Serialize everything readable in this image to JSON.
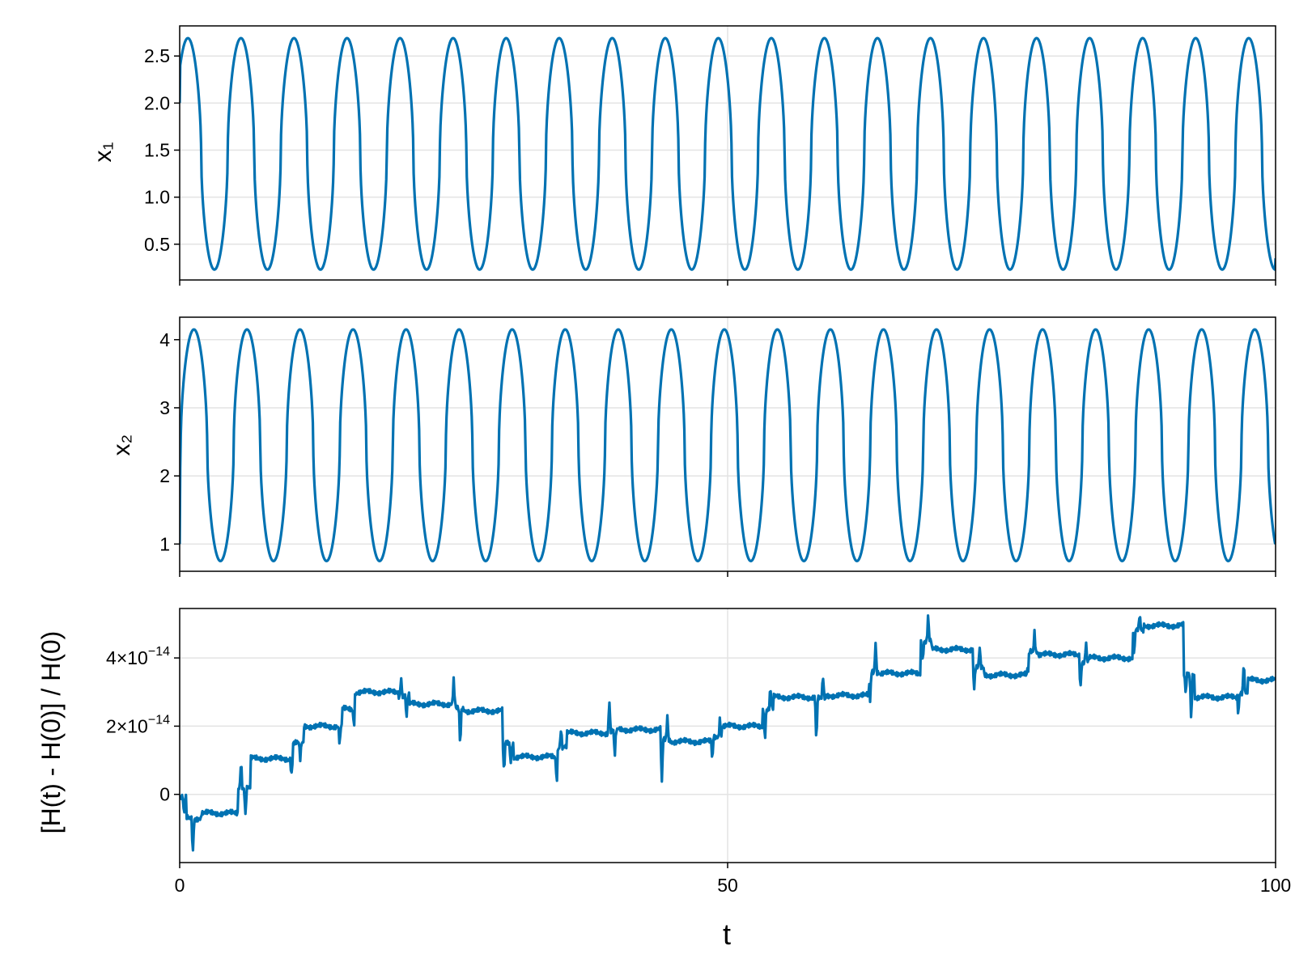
{
  "chart_data": [
    {
      "type": "line",
      "id": "x1",
      "ylabel": "x₁",
      "xlabel": "",
      "xlim": [
        0,
        100
      ],
      "ylim": [
        0.12,
        2.82
      ],
      "xticks": [
        0,
        50,
        100
      ],
      "yticks": [
        0.5,
        1.0,
        1.5,
        2.0,
        2.5
      ],
      "ytick_labels": [
        "0.5",
        "1.0",
        "1.5",
        "2.0",
        "2.5"
      ],
      "grid": true,
      "series_color": "#0072B2",
      "oscillation": {
        "period": 4.84,
        "min": 0.23,
        "max": 2.69,
        "first_peak_t": 0.75,
        "start_value": 2.0,
        "end_value": 0.35
      },
      "series": [
        {
          "x": [
            0,
            0.75,
            3.1,
            5.6,
            7.9,
            10.4,
            12.8,
            15.3,
            17.6,
            20.1,
            22.5,
            25.0,
            27.3,
            29.8,
            32.2,
            34.7,
            37.0,
            39.5,
            41.9,
            44.4,
            46.7,
            49.2,
            51.6,
            54.1,
            56.4,
            58.9,
            61.3,
            63.8,
            66.1,
            68.6,
            71.0,
            73.5,
            75.8,
            78.3,
            80.7,
            83.2,
            85.5,
            88.0,
            90.4,
            92.9,
            95.2,
            97.7,
            100
          ],
          "y": [
            2.0,
            2.69,
            0.23,
            2.69,
            0.23,
            2.69,
            0.23,
            2.69,
            0.23,
            2.69,
            0.23,
            2.69,
            0.23,
            2.69,
            0.23,
            2.69,
            0.23,
            2.69,
            0.23,
            2.69,
            0.23,
            2.69,
            0.23,
            2.69,
            0.23,
            2.69,
            0.23,
            2.69,
            0.23,
            2.69,
            0.23,
            2.69,
            0.23,
            2.69,
            0.23,
            2.69,
            0.23,
            2.69,
            0.23,
            2.69,
            0.23,
            2.69,
            0.35
          ]
        }
      ]
    },
    {
      "type": "line",
      "id": "x2",
      "ylabel": "x₂",
      "xlabel": "",
      "xlim": [
        0,
        100
      ],
      "ylim": [
        0.6,
        4.33
      ],
      "xticks": [
        0,
        50,
        100
      ],
      "yticks": [
        1,
        2,
        3,
        4
      ],
      "ytick_labels": [
        "1",
        "2",
        "3",
        "4"
      ],
      "grid": true,
      "series_color": "#0072B2",
      "oscillation": {
        "period": 4.84,
        "min": 0.75,
        "max": 4.15,
        "first_peak_t": 1.3,
        "start_value": 1.0,
        "end_value": 1.1
      },
      "series": [
        {
          "x": [
            0,
            1.3,
            3.6,
            6.1,
            8.5,
            10.9,
            13.3,
            15.8,
            18.2,
            20.6,
            23.0,
            25.5,
            27.9,
            30.3,
            32.7,
            35.2,
            37.6,
            40.0,
            42.4,
            44.9,
            47.3,
            49.7,
            52.1,
            54.6,
            57.0,
            59.4,
            61.8,
            64.3,
            66.7,
            69.1,
            71.5,
            74.0,
            76.4,
            78.8,
            81.2,
            83.7,
            86.1,
            88.5,
            90.9,
            93.4,
            95.8,
            98.2,
            100
          ],
          "y": [
            1.0,
            4.15,
            0.75,
            4.15,
            0.75,
            4.15,
            0.75,
            4.15,
            0.75,
            4.15,
            0.75,
            4.15,
            0.75,
            4.15,
            0.75,
            4.15,
            0.75,
            4.15,
            0.75,
            4.15,
            0.75,
            4.15,
            0.75,
            4.15,
            0.75,
            4.15,
            0.75,
            4.15,
            0.75,
            4.15,
            0.75,
            4.15,
            0.75,
            4.15,
            0.75,
            4.15,
            0.75,
            4.15,
            0.75,
            4.15,
            0.75,
            4.15,
            1.1
          ]
        }
      ]
    },
    {
      "type": "line",
      "id": "energy",
      "ylabel": "[H(t) - H(0)] / H(0)",
      "xlabel": "t",
      "xlim": [
        0,
        100
      ],
      "ylim": [
        -2e-14,
        5.45e-14
      ],
      "xticks": [
        0,
        50,
        100
      ],
      "xtick_labels": [
        "0",
        "50",
        "100"
      ],
      "yticks": [
        0,
        2e-14,
        4e-14
      ],
      "ytick_labels": [
        {
          "mantissa": "",
          "exponent": "",
          "plain": "0"
        },
        {
          "mantissa": "2×10",
          "exponent": "−14",
          "plain": ""
        },
        {
          "mantissa": "4×10",
          "exponent": "−14",
          "plain": ""
        }
      ],
      "grid": true,
      "series_color": "#0072B2",
      "levels": [
        {
          "t0": 0.0,
          "t1": 0.6,
          "level": -0.1
        },
        {
          "t0": 0.6,
          "t1": 2.0,
          "level": -0.7
        },
        {
          "t0": 2.0,
          "t1": 5.3,
          "level": -0.55
        },
        {
          "t0": 5.3,
          "t1": 6.5,
          "level": 0.2
        },
        {
          "t0": 6.5,
          "t1": 10.3,
          "level": 1.05
        },
        {
          "t0": 10.3,
          "t1": 11.3,
          "level": 1.5
        },
        {
          "t0": 11.3,
          "t1": 14.8,
          "level": 2.0
        },
        {
          "t0": 14.8,
          "t1": 16.0,
          "level": 2.5
        },
        {
          "t0": 16.0,
          "t1": 20.0,
          "level": 3.0
        },
        {
          "t0": 20.0,
          "t1": 21.0,
          "level": 2.9
        },
        {
          "t0": 21.0,
          "t1": 25.2,
          "level": 2.65
        },
        {
          "t0": 25.2,
          "t1": 26.0,
          "level": 2.5
        },
        {
          "t0": 26.0,
          "t1": 29.5,
          "level": 2.45
        },
        {
          "t0": 29.5,
          "t1": 30.5,
          "level": 1.5
        },
        {
          "t0": 30.5,
          "t1": 34.5,
          "level": 1.1
        },
        {
          "t0": 34.5,
          "t1": 35.3,
          "level": 1.4
        },
        {
          "t0": 35.3,
          "t1": 39.2,
          "level": 1.8
        },
        {
          "t0": 39.2,
          "t1": 40.0,
          "level": 1.85
        },
        {
          "t0": 40.0,
          "t1": 43.9,
          "level": 1.9
        },
        {
          "t0": 43.9,
          "t1": 44.8,
          "level": 1.6
        },
        {
          "t0": 44.8,
          "t1": 48.5,
          "level": 1.55
        },
        {
          "t0": 48.5,
          "t1": 49.5,
          "level": 1.7
        },
        {
          "t0": 49.5,
          "t1": 53.2,
          "level": 2.0
        },
        {
          "t0": 53.2,
          "t1": 54.2,
          "level": 2.5
        },
        {
          "t0": 54.2,
          "t1": 58.0,
          "level": 2.85
        },
        {
          "t0": 58.0,
          "t1": 59.0,
          "level": 2.8
        },
        {
          "t0": 59.0,
          "t1": 62.9,
          "level": 2.9
        },
        {
          "t0": 62.9,
          "t1": 63.8,
          "level": 3.6
        },
        {
          "t0": 63.8,
          "t1": 67.6,
          "level": 3.55
        },
        {
          "t0": 67.6,
          "t1": 68.6,
          "level": 4.5
        },
        {
          "t0": 68.6,
          "t1": 72.4,
          "level": 4.25
        },
        {
          "t0": 72.4,
          "t1": 73.4,
          "level": 3.7
        },
        {
          "t0": 73.4,
          "t1": 77.3,
          "level": 3.5
        },
        {
          "t0": 77.3,
          "t1": 78.3,
          "level": 4.2
        },
        {
          "t0": 78.3,
          "t1": 82.1,
          "level": 4.1
        },
        {
          "t0": 82.1,
          "t1": 83.0,
          "level": 3.9
        },
        {
          "t0": 83.0,
          "t1": 87.0,
          "level": 4.0
        },
        {
          "t0": 87.0,
          "t1": 88.0,
          "level": 4.8
        },
        {
          "t0": 88.0,
          "t1": 91.6,
          "level": 4.95
        },
        {
          "t0": 91.6,
          "t1": 92.6,
          "level": 3.5
        },
        {
          "t0": 92.6,
          "t1": 96.5,
          "level": 2.85
        },
        {
          "t0": 96.5,
          "t1": 97.5,
          "level": 3.0
        },
        {
          "t0": 97.5,
          "t1": 100.0,
          "level": 3.35
        }
      ],
      "level_units": "1e-14",
      "spikes": [
        {
          "t": 0.4,
          "dy": -0.6
        },
        {
          "t": 1.2,
          "dy": -1.1
        },
        {
          "t": 5.6,
          "dy": 0.9
        },
        {
          "t": 6.0,
          "dy": -0.8
        },
        {
          "t": 10.2,
          "dy": -0.5
        },
        {
          "t": 11.0,
          "dy": -0.5
        },
        {
          "t": 14.6,
          "dy": -0.6
        },
        {
          "t": 15.9,
          "dy": -0.5
        },
        {
          "t": 20.2,
          "dy": 0.6
        },
        {
          "t": 20.7,
          "dy": -0.7
        },
        {
          "t": 25.0,
          "dy": 0.7
        },
        {
          "t": 25.6,
          "dy": -1.2
        },
        {
          "t": 29.6,
          "dy": -1.0
        },
        {
          "t": 30.2,
          "dy": -0.6
        },
        {
          "t": 34.4,
          "dy": -0.8
        },
        {
          "t": 34.8,
          "dy": 0.6
        },
        {
          "t": 39.2,
          "dy": 1.0
        },
        {
          "t": 39.7,
          "dy": -0.8
        },
        {
          "t": 44.0,
          "dy": -1.3
        },
        {
          "t": 44.5,
          "dy": 0.7
        },
        {
          "t": 48.6,
          "dy": -0.8
        },
        {
          "t": 49.3,
          "dy": 0.6
        },
        {
          "t": 53.4,
          "dy": -1.0
        },
        {
          "t": 53.9,
          "dy": 0.7
        },
        {
          "t": 58.1,
          "dy": -1.4
        },
        {
          "t": 58.7,
          "dy": 0.7
        },
        {
          "t": 63.0,
          "dy": -0.9
        },
        {
          "t": 63.5,
          "dy": 0.9
        },
        {
          "t": 67.8,
          "dy": -0.6
        },
        {
          "t": 68.3,
          "dy": 0.8
        },
        {
          "t": 72.5,
          "dy": -0.6
        },
        {
          "t": 73.0,
          "dy": 0.6
        },
        {
          "t": 77.4,
          "dy": -0.8
        },
        {
          "t": 78.0,
          "dy": 0.6
        },
        {
          "t": 82.2,
          "dy": -0.8
        },
        {
          "t": 82.7,
          "dy": 0.6
        },
        {
          "t": 87.1,
          "dy": -0.8
        },
        {
          "t": 87.6,
          "dy": 0.5
        },
        {
          "t": 91.8,
          "dy": -0.6
        },
        {
          "t": 92.3,
          "dy": -1.4
        },
        {
          "t": 96.6,
          "dy": -0.7
        },
        {
          "t": 97.1,
          "dy": 1.0
        }
      ]
    }
  ]
}
